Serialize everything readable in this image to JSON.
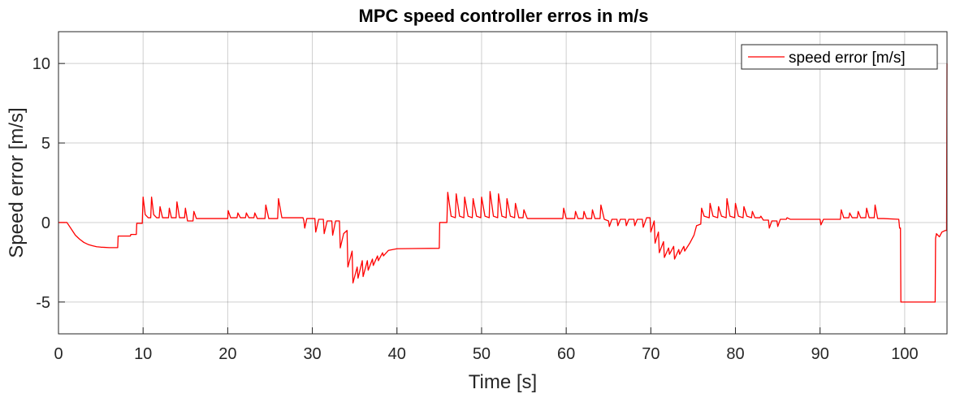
{
  "chart_data": {
    "type": "line",
    "title": "MPC speed controller erros in m/s",
    "xlabel": "Time [s]",
    "ylabel": "Speed error [m/s]",
    "xlim": [
      0,
      105
    ],
    "ylim": [
      -7,
      12
    ],
    "xticks": [
      0,
      10,
      20,
      30,
      40,
      50,
      60,
      70,
      80,
      90,
      100
    ],
    "yticks": [
      -5,
      0,
      5,
      10
    ],
    "grid": true,
    "legend_position": "top-right",
    "series": [
      {
        "name": "speed error [m/s]",
        "color": "#ff0000",
        "points": [
          [
            0,
            0
          ],
          [
            1,
            0
          ],
          [
            1.5,
            -0.4
          ],
          [
            2,
            -0.8
          ],
          [
            2.5,
            -1.05
          ],
          [
            3,
            -1.25
          ],
          [
            3.5,
            -1.38
          ],
          [
            4,
            -1.46
          ],
          [
            4.5,
            -1.52
          ],
          [
            5,
            -1.55
          ],
          [
            6,
            -1.58
          ],
          [
            7,
            -1.58
          ],
          [
            7.05,
            -0.85
          ],
          [
            8.5,
            -0.85
          ],
          [
            8.55,
            -0.75
          ],
          [
            9.2,
            -0.75
          ],
          [
            9.25,
            -0.05
          ],
          [
            9.9,
            -0.05
          ],
          [
            10,
            1.6
          ],
          [
            10.25,
            0.5
          ],
          [
            10.6,
            0.3
          ],
          [
            10.9,
            0.3
          ],
          [
            11.0,
            1.6
          ],
          [
            11.25,
            0.5
          ],
          [
            11.6,
            0.3
          ],
          [
            11.9,
            0.3
          ],
          [
            12.0,
            1.0
          ],
          [
            12.3,
            0.3
          ],
          [
            13.0,
            0.3
          ],
          [
            13.1,
            0.9
          ],
          [
            13.35,
            0.3
          ],
          [
            13.9,
            0.3
          ],
          [
            14.0,
            1.3
          ],
          [
            14.3,
            0.3
          ],
          [
            14.9,
            0.3
          ],
          [
            15.0,
            0.9
          ],
          [
            15.25,
            0.1
          ],
          [
            15.9,
            0.1
          ],
          [
            16.0,
            0.7
          ],
          [
            16.3,
            0.25
          ],
          [
            20,
            0.25
          ],
          [
            20.05,
            0.75
          ],
          [
            20.35,
            0.3
          ],
          [
            21.1,
            0.3
          ],
          [
            21.2,
            0.6
          ],
          [
            21.5,
            0.3
          ],
          [
            22.1,
            0.3
          ],
          [
            22.2,
            0.6
          ],
          [
            22.5,
            0.3
          ],
          [
            23.1,
            0.3
          ],
          [
            23.2,
            0.6
          ],
          [
            23.5,
            0.25
          ],
          [
            24.4,
            0.25
          ],
          [
            24.5,
            1.1
          ],
          [
            24.85,
            0.25
          ],
          [
            25.9,
            0.25
          ],
          [
            26.0,
            1.5
          ],
          [
            26.4,
            0.3
          ],
          [
            28.9,
            0.3
          ],
          [
            29.0,
            0.1
          ],
          [
            29.1,
            -0.35
          ],
          [
            29.35,
            0.25
          ],
          [
            30.3,
            0.25
          ],
          [
            30.4,
            -0.6
          ],
          [
            30.75,
            0.2
          ],
          [
            31.3,
            0.2
          ],
          [
            31.4,
            -0.7
          ],
          [
            31.75,
            0.1
          ],
          [
            32.3,
            0.1
          ],
          [
            32.4,
            -0.8
          ],
          [
            32.75,
            0.1
          ],
          [
            33.2,
            0.1
          ],
          [
            33.3,
            -1.6
          ],
          [
            33.7,
            -0.7
          ],
          [
            34.1,
            -0.5
          ],
          [
            34.2,
            -2.8
          ],
          [
            34.7,
            -1.8
          ],
          [
            34.8,
            -3.8
          ],
          [
            35.3,
            -2.8
          ],
          [
            35.4,
            -3.5
          ],
          [
            35.9,
            -2.4
          ],
          [
            36.0,
            -3.4
          ],
          [
            36.5,
            -2.4
          ],
          [
            36.6,
            -3.0
          ],
          [
            37.1,
            -2.3
          ],
          [
            37.2,
            -2.7
          ],
          [
            37.7,
            -2.1
          ],
          [
            37.8,
            -2.4
          ],
          [
            38.3,
            -1.9
          ],
          [
            38.4,
            -2.1
          ],
          [
            39.0,
            -1.75
          ],
          [
            40,
            -1.65
          ],
          [
            45,
            -1.62
          ],
          [
            45.05,
            0.0
          ],
          [
            45.9,
            0.0
          ],
          [
            46.0,
            1.9
          ],
          [
            46.4,
            0.4
          ],
          [
            46.9,
            0.3
          ],
          [
            47.0,
            1.8
          ],
          [
            47.4,
            0.4
          ],
          [
            47.9,
            0.3
          ],
          [
            48.0,
            1.6
          ],
          [
            48.4,
            0.4
          ],
          [
            48.9,
            0.3
          ],
          [
            49.0,
            1.5
          ],
          [
            49.4,
            0.4
          ],
          [
            49.9,
            0.3
          ],
          [
            50.0,
            1.6
          ],
          [
            50.4,
            0.4
          ],
          [
            50.9,
            0.3
          ],
          [
            51.0,
            1.95
          ],
          [
            51.4,
            0.4
          ],
          [
            51.9,
            0.3
          ],
          [
            52.0,
            1.8
          ],
          [
            52.4,
            0.4
          ],
          [
            52.9,
            0.3
          ],
          [
            53.0,
            1.5
          ],
          [
            53.4,
            0.4
          ],
          [
            53.9,
            0.3
          ],
          [
            54.0,
            1.2
          ],
          [
            54.4,
            0.3
          ],
          [
            54.9,
            0.3
          ],
          [
            55.0,
            0.8
          ],
          [
            55.4,
            0.25
          ],
          [
            59.6,
            0.25
          ],
          [
            59.7,
            0.9
          ],
          [
            60.0,
            0.25
          ],
          [
            61.0,
            0.25
          ],
          [
            61.1,
            0.7
          ],
          [
            61.4,
            0.25
          ],
          [
            62.0,
            0.25
          ],
          [
            62.1,
            0.7
          ],
          [
            62.4,
            0.25
          ],
          [
            63.0,
            0.25
          ],
          [
            63.1,
            0.8
          ],
          [
            63.4,
            0.25
          ],
          [
            64.0,
            0.25
          ],
          [
            64.1,
            1.1
          ],
          [
            64.5,
            0.2
          ],
          [
            65.0,
            0.1
          ],
          [
            65.1,
            -0.25
          ],
          [
            65.4,
            0.2
          ],
          [
            66.0,
            0.2
          ],
          [
            66.1,
            -0.2
          ],
          [
            66.4,
            0.2
          ],
          [
            67.0,
            0.2
          ],
          [
            67.1,
            -0.2
          ],
          [
            67.4,
            0.2
          ],
          [
            68.0,
            0.2
          ],
          [
            68.1,
            -0.2
          ],
          [
            68.4,
            0.2
          ],
          [
            69.0,
            0.2
          ],
          [
            69.1,
            -0.3
          ],
          [
            69.5,
            0.3
          ],
          [
            69.9,
            0.3
          ],
          [
            70.0,
            -0.6
          ],
          [
            70.4,
            0.1
          ],
          [
            70.5,
            -1.3
          ],
          [
            70.9,
            -0.6
          ],
          [
            71.0,
            -1.9
          ],
          [
            71.5,
            -1.2
          ],
          [
            71.6,
            -2.2
          ],
          [
            72.1,
            -1.6
          ],
          [
            72.2,
            -2.0
          ],
          [
            72.7,
            -1.5
          ],
          [
            72.8,
            -2.3
          ],
          [
            73.3,
            -1.7
          ],
          [
            73.4,
            -2.0
          ],
          [
            73.9,
            -1.5
          ],
          [
            74.0,
            -1.8
          ],
          [
            74.6,
            -1.3
          ],
          [
            75.1,
            -0.8
          ],
          [
            75.4,
            -0.2
          ],
          [
            75.9,
            -0.1
          ],
          [
            76.0,
            0.9
          ],
          [
            76.3,
            0.4
          ],
          [
            76.9,
            0.3
          ],
          [
            77.0,
            1.2
          ],
          [
            77.35,
            0.4
          ],
          [
            77.9,
            0.3
          ],
          [
            78.0,
            1.0
          ],
          [
            78.35,
            0.4
          ],
          [
            78.9,
            0.3
          ],
          [
            79.0,
            1.5
          ],
          [
            79.35,
            0.4
          ],
          [
            79.9,
            0.3
          ],
          [
            80.0,
            1.2
          ],
          [
            80.35,
            0.4
          ],
          [
            80.9,
            0.3
          ],
          [
            81.0,
            1.0
          ],
          [
            81.35,
            0.4
          ],
          [
            81.9,
            0.3
          ],
          [
            82.0,
            0.7
          ],
          [
            82.3,
            0.3
          ],
          [
            82.9,
            0.3
          ],
          [
            83.0,
            0.4
          ],
          [
            83.3,
            0.15
          ],
          [
            83.9,
            0.15
          ],
          [
            84.0,
            -0.35
          ],
          [
            84.3,
            0.1
          ],
          [
            84.9,
            0.1
          ],
          [
            85.0,
            -0.25
          ],
          [
            85.3,
            0.2
          ],
          [
            86.0,
            0.2
          ],
          [
            86.1,
            0.3
          ],
          [
            86.5,
            0.2
          ],
          [
            90.0,
            0.2
          ],
          [
            90.1,
            -0.15
          ],
          [
            90.4,
            0.2
          ],
          [
            92.4,
            0.2
          ],
          [
            92.5,
            0.8
          ],
          [
            92.8,
            0.3
          ],
          [
            93.4,
            0.3
          ],
          [
            93.5,
            0.6
          ],
          [
            93.8,
            0.3
          ],
          [
            94.4,
            0.3
          ],
          [
            94.5,
            0.7
          ],
          [
            94.8,
            0.3
          ],
          [
            95.4,
            0.3
          ],
          [
            95.5,
            0.9
          ],
          [
            95.8,
            0.3
          ],
          [
            96.4,
            0.3
          ],
          [
            96.5,
            1.1
          ],
          [
            96.8,
            0.25
          ],
          [
            97.5,
            0.25
          ],
          [
            99.3,
            0.2
          ],
          [
            99.4,
            -0.35
          ],
          [
            99.5,
            -0.35
          ],
          [
            99.55,
            -5.0
          ],
          [
            103.6,
            -5.0
          ],
          [
            103.65,
            -1.0
          ],
          [
            103.75,
            -0.7
          ],
          [
            104.1,
            -0.9
          ],
          [
            104.4,
            -0.6
          ],
          [
            104.8,
            -0.5
          ],
          [
            104.95,
            -0.5
          ],
          [
            105,
            10
          ]
        ]
      }
    ]
  }
}
